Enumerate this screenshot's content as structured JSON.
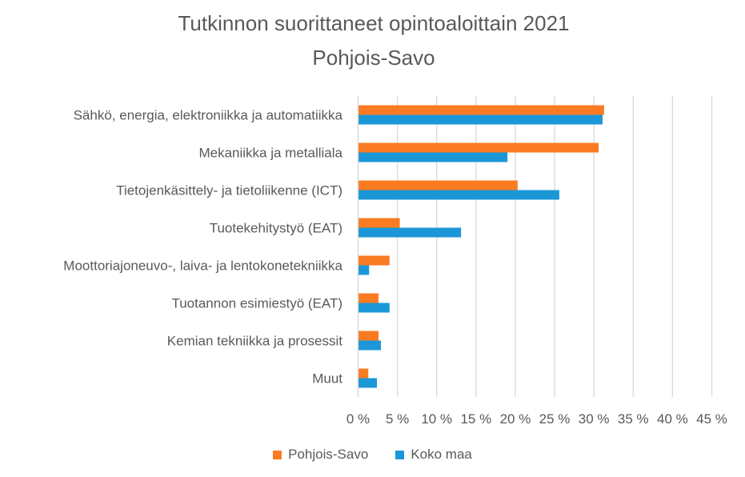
{
  "chart_data": {
    "type": "bar",
    "orientation": "horizontal",
    "title": "Tutkinnon suorittaneet opintoaloittain 2021",
    "subtitle": "Pohjois-Savo",
    "categories": [
      "Sähkö, energia, elektroniikka ja automatiikka",
      "Mekaniikka ja metalliala",
      "Tietojenkäsittely- ja tietoliikenne (ICT)",
      "Tuotekehitystyö (EAT)",
      "Moottoriajoneuvo-, laiva- ja lentokonetekniikka",
      "Tuotannon esimiestyö (EAT)",
      "Kemian tekniikka ja prosessit",
      "Muut"
    ],
    "series": [
      {
        "name": "Pohjois-Savo",
        "color": "#FA7B22",
        "values": [
          31.3,
          30.6,
          20.3,
          5.3,
          4.0,
          2.6,
          2.6,
          1.3
        ]
      },
      {
        "name": "Koko maa",
        "color": "#1B97D8",
        "values": [
          31.1,
          19.0,
          25.6,
          13.1,
          1.4,
          4.0,
          2.9,
          2.4
        ]
      }
    ],
    "xlim": [
      0,
      45
    ],
    "xticks": [
      "0 %",
      "5 %",
      "10 %",
      "15 %",
      "20 %",
      "25 %",
      "30 %",
      "35 %",
      "40 %",
      "45 %"
    ],
    "grid": true,
    "legend": "bottom"
  }
}
